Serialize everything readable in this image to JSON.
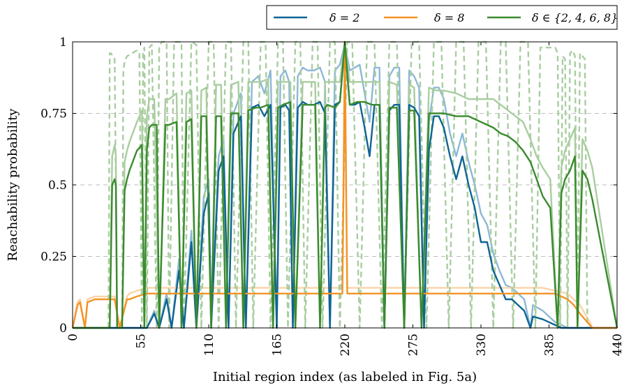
{
  "chart_data": {
    "type": "line",
    "xlabel": "Initial region index (as labeled in Fig. 5a)",
    "ylabel": "Reachability probability",
    "xlim": [
      0,
      440
    ],
    "ylim": [
      0,
      1
    ],
    "x_ticks": [
      "0",
      "55",
      "110",
      "165",
      "220",
      "275",
      "330",
      "385",
      "440"
    ],
    "y_ticks": [
      "0",
      "0.25",
      "0.5",
      "0.75",
      "1"
    ],
    "grid": "horizontal dashed",
    "legend_position": "top-right, outside",
    "legend": [
      "δ = 2",
      "δ = 8",
      "δ ∈ {2, 4, 6, 8}"
    ],
    "colors": {
      "delta2": "#0f6494",
      "delta8": "#f39325",
      "combined": "#3a8a2e"
    },
    "series": [
      {
        "key": "delta2",
        "name": "δ = 2",
        "color": "#0f6494",
        "x": [
          0,
          60,
          66,
          70,
          76,
          80,
          86,
          90,
          96,
          100,
          106,
          110,
          112,
          118,
          122,
          126,
          130,
          136,
          140,
          145,
          150,
          155,
          160,
          165,
          168,
          172,
          175,
          178,
          182,
          186,
          190,
          195,
          200,
          204,
          208,
          212,
          216,
          220,
          224,
          228,
          232,
          236,
          240,
          244,
          248,
          252,
          256,
          260,
          264,
          268,
          272,
          276,
          280,
          284,
          288,
          292,
          296,
          300,
          305,
          310,
          315,
          320,
          325,
          330,
          335,
          340,
          345,
          350,
          355,
          360,
          365,
          370,
          372,
          380,
          385,
          390,
          395,
          440
        ],
        "y": [
          0,
          0,
          0.05,
          0,
          0.1,
          0,
          0.2,
          0,
          0.3,
          0,
          0.4,
          0.47,
          0,
          0.55,
          0.6,
          0,
          0.68,
          0.74,
          0,
          0.77,
          0.78,
          0.74,
          0.78,
          0,
          0.77,
          0.78,
          0.76,
          0,
          0.77,
          0.79,
          0.78,
          0.78,
          0.79,
          0.75,
          0,
          0.78,
          0.79,
          0.99,
          0.78,
          0.78,
          0.79,
          0.7,
          0.6,
          0.78,
          0.78,
          0,
          0.76,
          0.78,
          0.78,
          0,
          0.78,
          0.77,
          0.74,
          0,
          0.62,
          0.74,
          0.74,
          0.7,
          0.6,
          0.52,
          0.6,
          0.5,
          0.42,
          0.3,
          0.3,
          0.2,
          0.15,
          0.1,
          0.1,
          0.08,
          0.06,
          0,
          0.04,
          0.03,
          0.02,
          0.01,
          0,
          0
        ]
      },
      {
        "key": "delta8",
        "name": "δ = 8",
        "color": "#f39325",
        "x": [
          0,
          4,
          6,
          10,
          12,
          18,
          22,
          28,
          34,
          38,
          44,
          46,
          52,
          60,
          65,
          70,
          218,
          219,
          220,
          221,
          222,
          380,
          385,
          390,
          395,
          400,
          405,
          410,
          418,
          420,
          440
        ],
        "y": [
          0,
          0.08,
          0.09,
          0,
          0.09,
          0.1,
          0.1,
          0.1,
          0.1,
          0,
          0.1,
          0.1,
          0.11,
          0.12,
          0.12,
          0.12,
          0.12,
          0.5,
          1,
          0.5,
          0.12,
          0.12,
          0.12,
          0.12,
          0.11,
          0.1,
          0.08,
          0.05,
          0.01,
          0,
          0
        ]
      },
      {
        "key": "combined",
        "name": "δ ∈ {2, 4, 6, 8}",
        "color": "#3a8a2e",
        "x": [
          0,
          30,
          32,
          34,
          35,
          36,
          40,
          42,
          44,
          46,
          52,
          56,
          58,
          60,
          62,
          64,
          66,
          68,
          70,
          75,
          78,
          84,
          88,
          92,
          96,
          100,
          104,
          108,
          112,
          116,
          120,
          124,
          128,
          134,
          138,
          142,
          148,
          152,
          158,
          162,
          166,
          170,
          176,
          180,
          186,
          190,
          196,
          200,
          204,
          206,
          212,
          216,
          220,
          224,
          230,
          236,
          242,
          248,
          252,
          256,
          262,
          268,
          272,
          276,
          282,
          288,
          294,
          300,
          310,
          320,
          330,
          340,
          346,
          352,
          358,
          364,
          370,
          375,
          380,
          386,
          392,
          395,
          398,
          402,
          406,
          408,
          412,
          416,
          420,
          440
        ],
        "y": [
          0,
          0,
          0.5,
          0.52,
          0.5,
          0,
          0,
          0.48,
          0.52,
          0.55,
          0.62,
          0.64,
          0,
          0.62,
          0.7,
          0.71,
          0.71,
          0.71,
          0,
          0.71,
          0.71,
          0.72,
          0,
          0.72,
          0.73,
          0,
          0.74,
          0.74,
          0,
          0.74,
          0.74,
          0,
          0.75,
          0.75,
          0,
          0.76,
          0.77,
          0.77,
          0.78,
          0,
          0.77,
          0.78,
          0.79,
          0,
          0.78,
          0.78,
          0.78,
          0,
          0.77,
          0.78,
          0.77,
          0.79,
          1,
          0.78,
          0.79,
          0.79,
          0.78,
          0.78,
          0,
          0.77,
          0.77,
          0,
          0.76,
          0.76,
          0,
          0.75,
          0.75,
          0.75,
          0.74,
          0.74,
          0.72,
          0.7,
          0.68,
          0.67,
          0.65,
          0.62,
          0.58,
          0.52,
          0.46,
          0.42,
          0,
          0.47,
          0.52,
          0.55,
          0.6,
          0,
          0.55,
          0.52,
          0.45,
          0
        ]
      }
    ],
    "faded_series": [
      {
        "key": "delta2_faded",
        "color": "#8cb8d6",
        "dash": false,
        "x": [
          0,
          60,
          66,
          70,
          76,
          80,
          86,
          90,
          96,
          100,
          106,
          110,
          112,
          118,
          122,
          126,
          130,
          136,
          140,
          145,
          150,
          155,
          160,
          165,
          168,
          172,
          175,
          178,
          182,
          186,
          190,
          195,
          200,
          204,
          208,
          212,
          216,
          220,
          224,
          228,
          232,
          236,
          240,
          244,
          248,
          252,
          256,
          260,
          264,
          268,
          272,
          276,
          280,
          284,
          288,
          292,
          296,
          300,
          305,
          310,
          315,
          320,
          325,
          330,
          335,
          340,
          345,
          350,
          355,
          360,
          365,
          370,
          372,
          380,
          385,
          390,
          395,
          400,
          440
        ],
        "y": [
          0,
          0,
          0.06,
          0,
          0.12,
          0,
          0.24,
          0,
          0.34,
          0,
          0.46,
          0.52,
          0,
          0.6,
          0.66,
          0,
          0.75,
          0.82,
          0,
          0.86,
          0.88,
          0.82,
          0.9,
          0,
          0.88,
          0.9,
          0.86,
          0,
          0.88,
          0.91,
          0.9,
          0.9,
          0.91,
          0.86,
          0,
          0.9,
          0.92,
          0.99,
          0.9,
          0.91,
          0.92,
          0.82,
          0.72,
          0.91,
          0.91,
          0,
          0.88,
          0.91,
          0.91,
          0,
          0.9,
          0.88,
          0.84,
          0,
          0.72,
          0.84,
          0.84,
          0.8,
          0.68,
          0.6,
          0.68,
          0.58,
          0.5,
          0.4,
          0.36,
          0.26,
          0.2,
          0.15,
          0.14,
          0.12,
          0.1,
          0,
          0.08,
          0.06,
          0.04,
          0.02,
          0.01,
          0,
          0
        ]
      },
      {
        "key": "delta8_faded",
        "color": "#fbd3a6",
        "dash": false,
        "x": [
          0,
          4,
          6,
          10,
          12,
          18,
          22,
          28,
          34,
          38,
          44,
          46,
          52,
          60,
          70,
          90,
          110,
          130,
          150,
          170,
          190,
          210,
          218,
          220,
          222,
          240,
          260,
          280,
          300,
          320,
          340,
          360,
          380,
          390,
          400,
          410,
          418,
          420,
          440
        ],
        "y": [
          0,
          0.09,
          0.1,
          0,
          0.1,
          0.11,
          0.11,
          0.11,
          0.11,
          0,
          0.11,
          0.12,
          0.13,
          0.14,
          0.14,
          0.14,
          0.14,
          0.14,
          0.14,
          0.14,
          0.14,
          0.14,
          0.14,
          1,
          0.14,
          0.14,
          0.14,
          0.14,
          0.14,
          0.14,
          0.14,
          0.14,
          0.14,
          0.13,
          0.12,
          0.08,
          0.02,
          0,
          0
        ]
      },
      {
        "key": "combined_faded",
        "color": "#a9cd9f",
        "dash": false,
        "x": [
          0,
          30,
          32,
          34,
          35,
          36,
          40,
          42,
          44,
          46,
          52,
          56,
          58,
          60,
          62,
          64,
          66,
          70,
          75,
          78,
          84,
          88,
          92,
          96,
          100,
          104,
          108,
          112,
          116,
          120,
          124,
          128,
          134,
          138,
          142,
          148,
          152,
          158,
          162,
          166,
          170,
          176,
          180,
          186,
          190,
          196,
          200,
          204,
          206,
          212,
          216,
          220,
          224,
          230,
          236,
          242,
          248,
          252,
          256,
          262,
          268,
          272,
          276,
          282,
          288,
          294,
          300,
          310,
          320,
          330,
          340,
          346,
          352,
          358,
          364,
          370,
          375,
          380,
          386,
          392,
          395,
          398,
          402,
          406,
          408,
          412,
          416,
          420,
          440
        ],
        "y": [
          0,
          0,
          0.6,
          0.64,
          0.6,
          0,
          0,
          0.58,
          0.62,
          0.65,
          0.72,
          0.76,
          0,
          0.74,
          0.8,
          0.8,
          0.8,
          0,
          0.8,
          0.8,
          0.82,
          0,
          0.82,
          0.83,
          0,
          0.83,
          0.84,
          0,
          0.85,
          0.85,
          0,
          0.85,
          0.86,
          0,
          0.86,
          0.86,
          0.86,
          0.87,
          0,
          0.86,
          0.86,
          0.86,
          0,
          0.86,
          0.86,
          0.86,
          0,
          0.86,
          0.86,
          0.86,
          0.86,
          1,
          0.86,
          0.86,
          0.86,
          0.86,
          0.86,
          0,
          0.86,
          0.85,
          0,
          0.85,
          0.84,
          0,
          0.84,
          0.83,
          0.83,
          0.82,
          0.8,
          0.8,
          0.8,
          0.78,
          0.76,
          0.74,
          0.72,
          0.66,
          0.6,
          0.56,
          0.52,
          0,
          0.56,
          0.62,
          0.66,
          0.7,
          0,
          0.66,
          0.62,
          0.56,
          0
        ]
      },
      {
        "key": "combined_dashed",
        "color": "#a9cd9f",
        "dash": true,
        "x": [
          0,
          29,
          30,
          31,
          34,
          36,
          40,
          41,
          42,
          44,
          52,
          54,
          56,
          57,
          58,
          60,
          62,
          64,
          68,
          70,
          72,
          76,
          78,
          82,
          88,
          90,
          96,
          100,
          104,
          110,
          114,
          118,
          124,
          128,
          132,
          138,
          142,
          146,
          152,
          156,
          160,
          166,
          170,
          174,
          180,
          184,
          188,
          194,
          198,
          202,
          208,
          212,
          216,
          222,
          226,
          232,
          238,
          244,
          250,
          256,
          262,
          268,
          274,
          280,
          286,
          292,
          298,
          304,
          310,
          316,
          322,
          328,
          334,
          340,
          346,
          350,
          356,
          362,
          368,
          374,
          378,
          382,
          386,
          390,
          392,
          394,
          396,
          398,
          400,
          402,
          404,
          406,
          408,
          410,
          412,
          414,
          416,
          418,
          420,
          440
        ],
        "y": [
          0,
          0,
          0.96,
          0.96,
          0.94,
          0,
          0,
          0.9,
          0.93,
          0.95,
          0.97,
          0.96,
          0,
          0.96,
          0.98,
          0,
          0.98,
          0.99,
          0,
          0.98,
          1,
          1,
          0,
          1,
          1,
          0,
          1,
          0.99,
          0,
          1,
          1,
          0,
          1,
          1,
          0,
          1,
          1,
          0,
          1,
          1,
          0,
          1,
          1,
          0,
          1,
          1,
          0,
          1,
          1,
          0,
          1,
          1,
          0,
          1,
          1,
          0,
          1,
          1,
          0,
          1,
          1,
          0,
          1,
          1,
          0,
          1,
          1,
          0,
          1,
          1,
          0,
          1,
          1,
          0,
          1,
          1,
          0,
          1,
          1,
          0,
          0.98,
          0.98,
          0.98,
          0.98,
          0.96,
          0,
          0.95,
          0.94,
          0,
          0.96,
          0.97,
          0.95,
          0,
          0.96,
          0.95,
          0.94,
          0,
          0,
          0,
          0
        ]
      }
    ]
  }
}
